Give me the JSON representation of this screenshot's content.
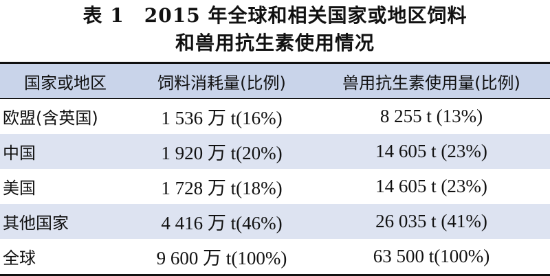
{
  "title": {
    "line1": "表 1　2015 年全球和相关国家或地区饲料",
    "line2": "和兽用抗生素使用情况"
  },
  "table": {
    "headers": [
      "国家或地区",
      "饲料消耗量(比例)",
      "兽用抗生素使用量(比例)"
    ],
    "rows": [
      [
        "欧盟(含英国)",
        "1 536 万 t(16%)",
        "8 255 t (13%)"
      ],
      [
        "中国",
        "1 920 万 t(20%)",
        "14 605 t (23%)"
      ],
      [
        "美国",
        "1 728 万 t(18%)",
        "14 605 t (23%)"
      ],
      [
        "其他国家",
        "4 416 万 t(46%)",
        "26 035 t (41%)"
      ],
      [
        "全球",
        "9 600 万 t(100%)",
        "63 500 t(100%)"
      ]
    ],
    "colors": {
      "header_bg": "#c9d4ea",
      "shade_bg": "#dde3f1",
      "rule": "#111111"
    }
  }
}
